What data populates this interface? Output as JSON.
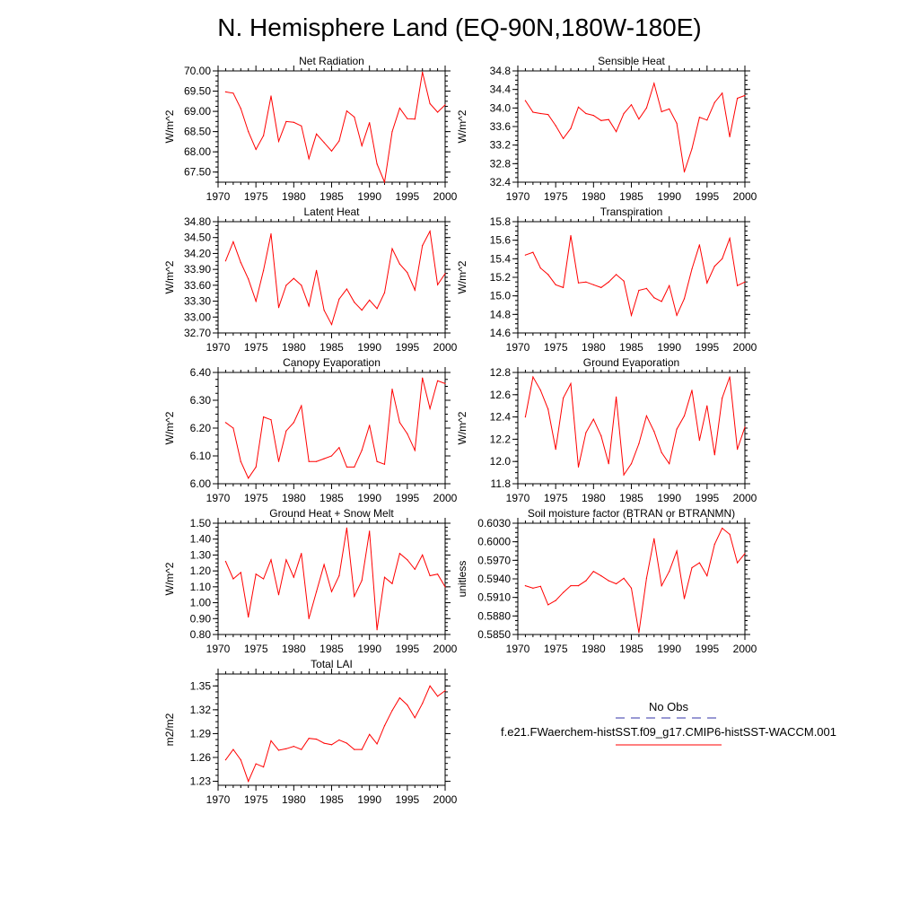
{
  "title": "N. Hemisphere Land (EQ-90N,180W-180E)",
  "colors": {
    "model": "#ff0000",
    "obs": "#3333aa",
    "axis": "#000000"
  },
  "legend": {
    "obs_label": "No Obs",
    "model_label": "f.e21.FWaerchem-histSST.f09_g17.CMIP6-histSST-WACCM.001"
  },
  "chart_data": [
    {
      "type": "line",
      "title": "Net Radiation",
      "xlabel": "",
      "ylabel": "W/m^2",
      "xlim": [
        1970,
        2000
      ],
      "ylim": [
        67.25,
        70.0
      ],
      "xticks": [
        "1970",
        "1975",
        "1980",
        "1985",
        "1990",
        "1995",
        "2000"
      ],
      "yticks": [
        "67.50",
        "68.00",
        "68.50",
        "69.00",
        "69.50",
        "70.00"
      ],
      "x": [
        1971,
        1972,
        1973,
        1974,
        1975,
        1976,
        1977,
        1978,
        1979,
        1980,
        1981,
        1982,
        1983,
        1984,
        1985,
        1986,
        1987,
        1988,
        1989,
        1990,
        1991,
        1992,
        1993,
        1994,
        1995,
        1996,
        1997,
        1998,
        1999,
        2000
      ],
      "series": [
        {
          "values": [
            69.48,
            69.45,
            69.07,
            68.5,
            68.06,
            68.4,
            69.38,
            68.26,
            68.75,
            68.73,
            68.64,
            67.83,
            68.44,
            68.23,
            68.02,
            68.27,
            69.01,
            68.86,
            68.15,
            68.72,
            67.7,
            67.25,
            68.5,
            69.08,
            68.82,
            68.81,
            69.97,
            69.19,
            68.98,
            69.16
          ]
        }
      ]
    },
    {
      "type": "line",
      "title": "Sensible Heat",
      "xlabel": "",
      "ylabel": "W/m^2",
      "xlim": [
        1970,
        2000
      ],
      "ylim": [
        32.4,
        34.8
      ],
      "xticks": [
        "1970",
        "1975",
        "1980",
        "1985",
        "1990",
        "1995",
        "2000"
      ],
      "yticks": [
        "32.4",
        "32.8",
        "33.2",
        "33.6",
        "34.0",
        "34.4",
        "34.8"
      ],
      "x": [
        1971,
        1972,
        1973,
        1974,
        1975,
        1976,
        1977,
        1978,
        1979,
        1980,
        1981,
        1982,
        1983,
        1984,
        1985,
        1986,
        1987,
        1988,
        1989,
        1990,
        1991,
        1992,
        1993,
        1994,
        1995,
        1996,
        1997,
        1998,
        1999,
        2000
      ],
      "series": [
        {
          "values": [
            34.16,
            33.91,
            33.88,
            33.86,
            33.62,
            33.34,
            33.56,
            34.02,
            33.88,
            33.84,
            33.73,
            33.75,
            33.49,
            33.88,
            34.07,
            33.76,
            34.0,
            34.53,
            33.92,
            33.98,
            33.67,
            32.62,
            33.12,
            33.8,
            33.74,
            34.12,
            34.32,
            33.38,
            34.21,
            34.27
          ]
        }
      ]
    },
    {
      "type": "line",
      "title": "Latent Heat",
      "xlabel": "",
      "ylabel": "W/m^2",
      "xlim": [
        1970,
        2000
      ],
      "ylim": [
        32.7,
        34.8
      ],
      "xticks": [
        "1970",
        "1975",
        "1980",
        "1985",
        "1990",
        "1995",
        "2000"
      ],
      "yticks": [
        "32.70",
        "33.00",
        "33.30",
        "33.60",
        "33.90",
        "34.20",
        "34.50",
        "34.80"
      ],
      "x": [
        1971,
        1972,
        1973,
        1974,
        1975,
        1976,
        1977,
        1978,
        1979,
        1980,
        1981,
        1982,
        1983,
        1984,
        1985,
        1986,
        1987,
        1988,
        1989,
        1990,
        1991,
        1992,
        1993,
        1994,
        1995,
        1996,
        1997,
        1998,
        1999,
        2000
      ],
      "series": [
        {
          "values": [
            34.06,
            34.42,
            34.03,
            33.72,
            33.3,
            33.88,
            34.57,
            33.18,
            33.6,
            33.73,
            33.6,
            33.21,
            33.88,
            33.13,
            32.86,
            33.34,
            33.53,
            33.28,
            33.13,
            33.32,
            33.16,
            33.46,
            34.29,
            34.0,
            33.84,
            33.51,
            34.35,
            34.62,
            33.61,
            33.82
          ]
        }
      ]
    },
    {
      "type": "line",
      "title": "Transpiration",
      "xlabel": "",
      "ylabel": "W/m^2",
      "xlim": [
        1970,
        2000
      ],
      "ylim": [
        14.6,
        15.8
      ],
      "xticks": [
        "1970",
        "1975",
        "1980",
        "1985",
        "1990",
        "1995",
        "2000"
      ],
      "yticks": [
        "14.6",
        "14.8",
        "15.0",
        "15.2",
        "15.4",
        "15.6",
        "15.8"
      ],
      "x": [
        1971,
        1972,
        1973,
        1974,
        1975,
        1976,
        1977,
        1978,
        1979,
        1980,
        1981,
        1982,
        1983,
        1984,
        1985,
        1986,
        1987,
        1988,
        1989,
        1990,
        1991,
        1992,
        1993,
        1994,
        1995,
        1996,
        1997,
        1998,
        1999,
        2000
      ],
      "series": [
        {
          "values": [
            15.44,
            15.47,
            15.3,
            15.23,
            15.12,
            15.09,
            15.65,
            15.14,
            15.15,
            15.12,
            15.09,
            15.15,
            15.23,
            15.16,
            14.79,
            15.06,
            15.08,
            14.98,
            14.94,
            15.11,
            14.79,
            14.97,
            15.29,
            15.55,
            15.14,
            15.32,
            15.4,
            15.62,
            15.11,
            15.15
          ]
        }
      ]
    },
    {
      "type": "line",
      "title": "Canopy Evaporation",
      "xlabel": "",
      "ylabel": "W/m^2",
      "xlim": [
        1970,
        2000
      ],
      "ylim": [
        6.0,
        6.4
      ],
      "xticks": [
        "1970",
        "1975",
        "1980",
        "1985",
        "1990",
        "1995",
        "2000"
      ],
      "yticks": [
        "6.00",
        "6.10",
        "6.20",
        "6.30",
        "6.40"
      ],
      "x": [
        1971,
        1972,
        1973,
        1974,
        1975,
        1976,
        1977,
        1978,
        1979,
        1980,
        1981,
        1982,
        1983,
        1984,
        1985,
        1986,
        1987,
        1988,
        1989,
        1990,
        1991,
        1992,
        1993,
        1994,
        1995,
        1996,
        1997,
        1998,
        1999,
        2000
      ],
      "series": [
        {
          "values": [
            6.22,
            6.2,
            6.08,
            6.02,
            6.06,
            6.24,
            6.23,
            6.08,
            6.19,
            6.22,
            6.28,
            6.08,
            6.08,
            6.09,
            6.1,
            6.13,
            6.06,
            6.06,
            6.12,
            6.21,
            6.08,
            6.07,
            6.34,
            6.22,
            6.18,
            6.12,
            6.38,
            6.27,
            6.37,
            6.36
          ]
        }
      ]
    },
    {
      "type": "line",
      "title": "Ground Evaporation",
      "xlabel": "",
      "ylabel": "W/m^2",
      "xlim": [
        1970,
        2000
      ],
      "ylim": [
        11.8,
        12.8
      ],
      "xticks": [
        "1970",
        "1975",
        "1980",
        "1985",
        "1990",
        "1995",
        "2000"
      ],
      "yticks": [
        "11.8",
        "12.0",
        "12.2",
        "12.4",
        "12.6",
        "12.8"
      ],
      "x": [
        1971,
        1972,
        1973,
        1974,
        1975,
        1976,
        1977,
        1978,
        1979,
        1980,
        1981,
        1982,
        1983,
        1984,
        1985,
        1986,
        1987,
        1988,
        1989,
        1990,
        1991,
        1992,
        1993,
        1994,
        1995,
        1996,
        1997,
        1998,
        1999,
        2000
      ],
      "series": [
        {
          "values": [
            12.4,
            12.76,
            12.64,
            12.47,
            12.11,
            12.57,
            12.7,
            11.95,
            12.26,
            12.38,
            12.23,
            11.98,
            12.58,
            11.88,
            11.98,
            12.16,
            12.41,
            12.27,
            12.08,
            11.98,
            12.29,
            12.41,
            12.64,
            12.19,
            12.5,
            12.06,
            12.57,
            12.76,
            12.11,
            12.31
          ]
        }
      ]
    },
    {
      "type": "line",
      "title": "Ground Heat + Snow Melt",
      "xlabel": "",
      "ylabel": "W/m^2",
      "xlim": [
        1970,
        2000
      ],
      "ylim": [
        0.8,
        1.5
      ],
      "xticks": [
        "1970",
        "1975",
        "1980",
        "1985",
        "1990",
        "1995",
        "2000"
      ],
      "yticks": [
        "0.80",
        "0.90",
        "1.00",
        "1.10",
        "1.20",
        "1.30",
        "1.40",
        "1.50"
      ],
      "x": [
        1971,
        1972,
        1973,
        1974,
        1975,
        1976,
        1977,
        1978,
        1979,
        1980,
        1981,
        1982,
        1983,
        1984,
        1985,
        1986,
        1987,
        1988,
        1989,
        1990,
        1991,
        1992,
        1993,
        1994,
        1995,
        1996,
        1997,
        1998,
        1999,
        2000
      ],
      "series": [
        {
          "values": [
            1.26,
            1.15,
            1.19,
            0.91,
            1.18,
            1.15,
            1.27,
            1.05,
            1.27,
            1.16,
            1.31,
            0.9,
            1.07,
            1.24,
            1.07,
            1.17,
            1.47,
            1.04,
            1.14,
            1.45,
            0.83,
            1.16,
            1.12,
            1.31,
            1.27,
            1.21,
            1.3,
            1.17,
            1.18,
            1.1
          ]
        }
      ]
    },
    {
      "type": "line",
      "title": "Soil moisture factor (BTRAN or BTRANMN)",
      "xlabel": "",
      "ylabel": "unitless",
      "xlim": [
        1970,
        2000
      ],
      "ylim": [
        0.585,
        0.603
      ],
      "xticks": [
        "1970",
        "1975",
        "1980",
        "1985",
        "1990",
        "1995",
        "2000"
      ],
      "yticks": [
        "0.5850",
        "0.5880",
        "0.5910",
        "0.5940",
        "0.5970",
        "0.6000",
        "0.6030"
      ],
      "x": [
        1971,
        1972,
        1973,
        1974,
        1975,
        1976,
        1977,
        1978,
        1979,
        1980,
        1981,
        1982,
        1983,
        1984,
        1985,
        1986,
        1987,
        1988,
        1989,
        1990,
        1991,
        1992,
        1993,
        1994,
        1995,
        1996,
        1997,
        1998,
        1999,
        2000
      ],
      "series": [
        {
          "values": [
            0.5929,
            0.5925,
            0.5928,
            0.5898,
            0.5905,
            0.5918,
            0.5929,
            0.5929,
            0.5937,
            0.5952,
            0.5945,
            0.5937,
            0.5932,
            0.5941,
            0.5925,
            0.5853,
            0.5941,
            0.6005,
            0.5929,
            0.5952,
            0.5985,
            0.5908,
            0.5958,
            0.5966,
            0.5945,
            0.5996,
            0.6022,
            0.6012,
            0.5966,
            0.5981
          ]
        }
      ]
    },
    {
      "type": "line",
      "title": "Total LAI",
      "xlabel": "",
      "ylabel": "m2/m2",
      "xlim": [
        1970,
        2000
      ],
      "ylim": [
        1.225,
        1.365
      ],
      "xticks": [
        "1970",
        "1975",
        "1980",
        "1985",
        "1990",
        "1995",
        "2000"
      ],
      "yticks": [
        "1.23",
        "1.26",
        "1.29",
        "1.32",
        "1.35"
      ],
      "x": [
        1971,
        1972,
        1973,
        1974,
        1975,
        1976,
        1977,
        1978,
        1979,
        1980,
        1981,
        1982,
        1983,
        1984,
        1985,
        1986,
        1987,
        1988,
        1989,
        1990,
        1991,
        1992,
        1993,
        1994,
        1995,
        1996,
        1997,
        1998,
        1999,
        2000
      ],
      "series": [
        {
          "values": [
            1.257,
            1.27,
            1.257,
            1.23,
            1.252,
            1.248,
            1.281,
            1.269,
            1.271,
            1.274,
            1.27,
            1.284,
            1.283,
            1.278,
            1.276,
            1.282,
            1.278,
            1.27,
            1.27,
            1.289,
            1.277,
            1.3,
            1.319,
            1.335,
            1.326,
            1.31,
            1.328,
            1.35,
            1.337,
            1.344
          ]
        }
      ]
    }
  ]
}
